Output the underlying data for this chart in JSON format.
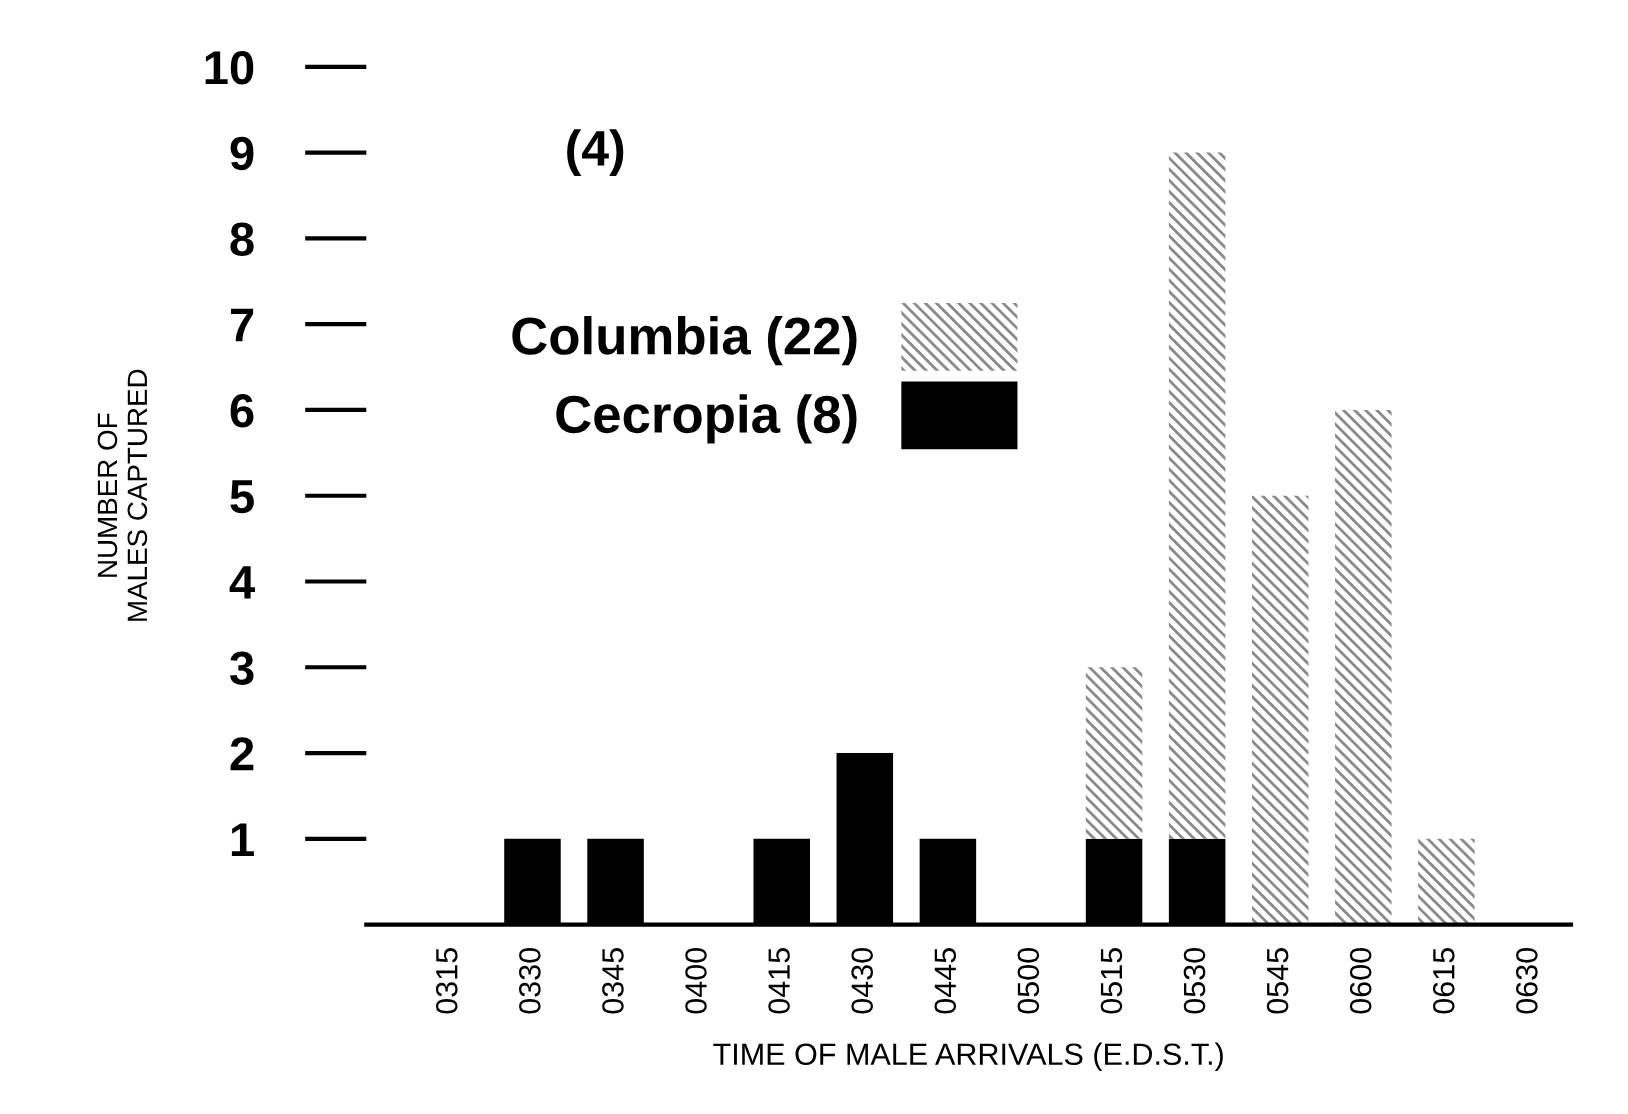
{
  "chart_data": {
    "type": "bar",
    "stacked": true,
    "xlabel": "TIME OF MALE ARRIVALS (E.D.S.T.)",
    "ylabel": "NUMBER OF\nMALES CAPTURED",
    "categories": [
      "0315",
      "0330",
      "0345",
      "0400",
      "0415",
      "0430",
      "0445",
      "0500",
      "0515",
      "0530",
      "0545",
      "0600",
      "0615",
      "0630"
    ],
    "series": [
      {
        "name": "Cecropia (8)",
        "color": "#000000",
        "values": [
          0,
          1,
          1,
          0,
          1,
          2,
          1,
          0,
          1,
          1,
          0,
          0,
          0,
          0
        ]
      },
      {
        "name": "Columbia (22)",
        "color": "#8a8a8a",
        "values": [
          0,
          0,
          0,
          0,
          0,
          0,
          0,
          0,
          2,
          8,
          5,
          6,
          1,
          0
        ]
      }
    ],
    "ylim": [
      0,
      10
    ],
    "yticks": [
      1,
      2,
      3,
      4,
      5,
      6,
      7,
      8,
      9,
      10
    ],
    "grid": false,
    "legend": "top left",
    "annotations": [
      "(4)"
    ]
  }
}
